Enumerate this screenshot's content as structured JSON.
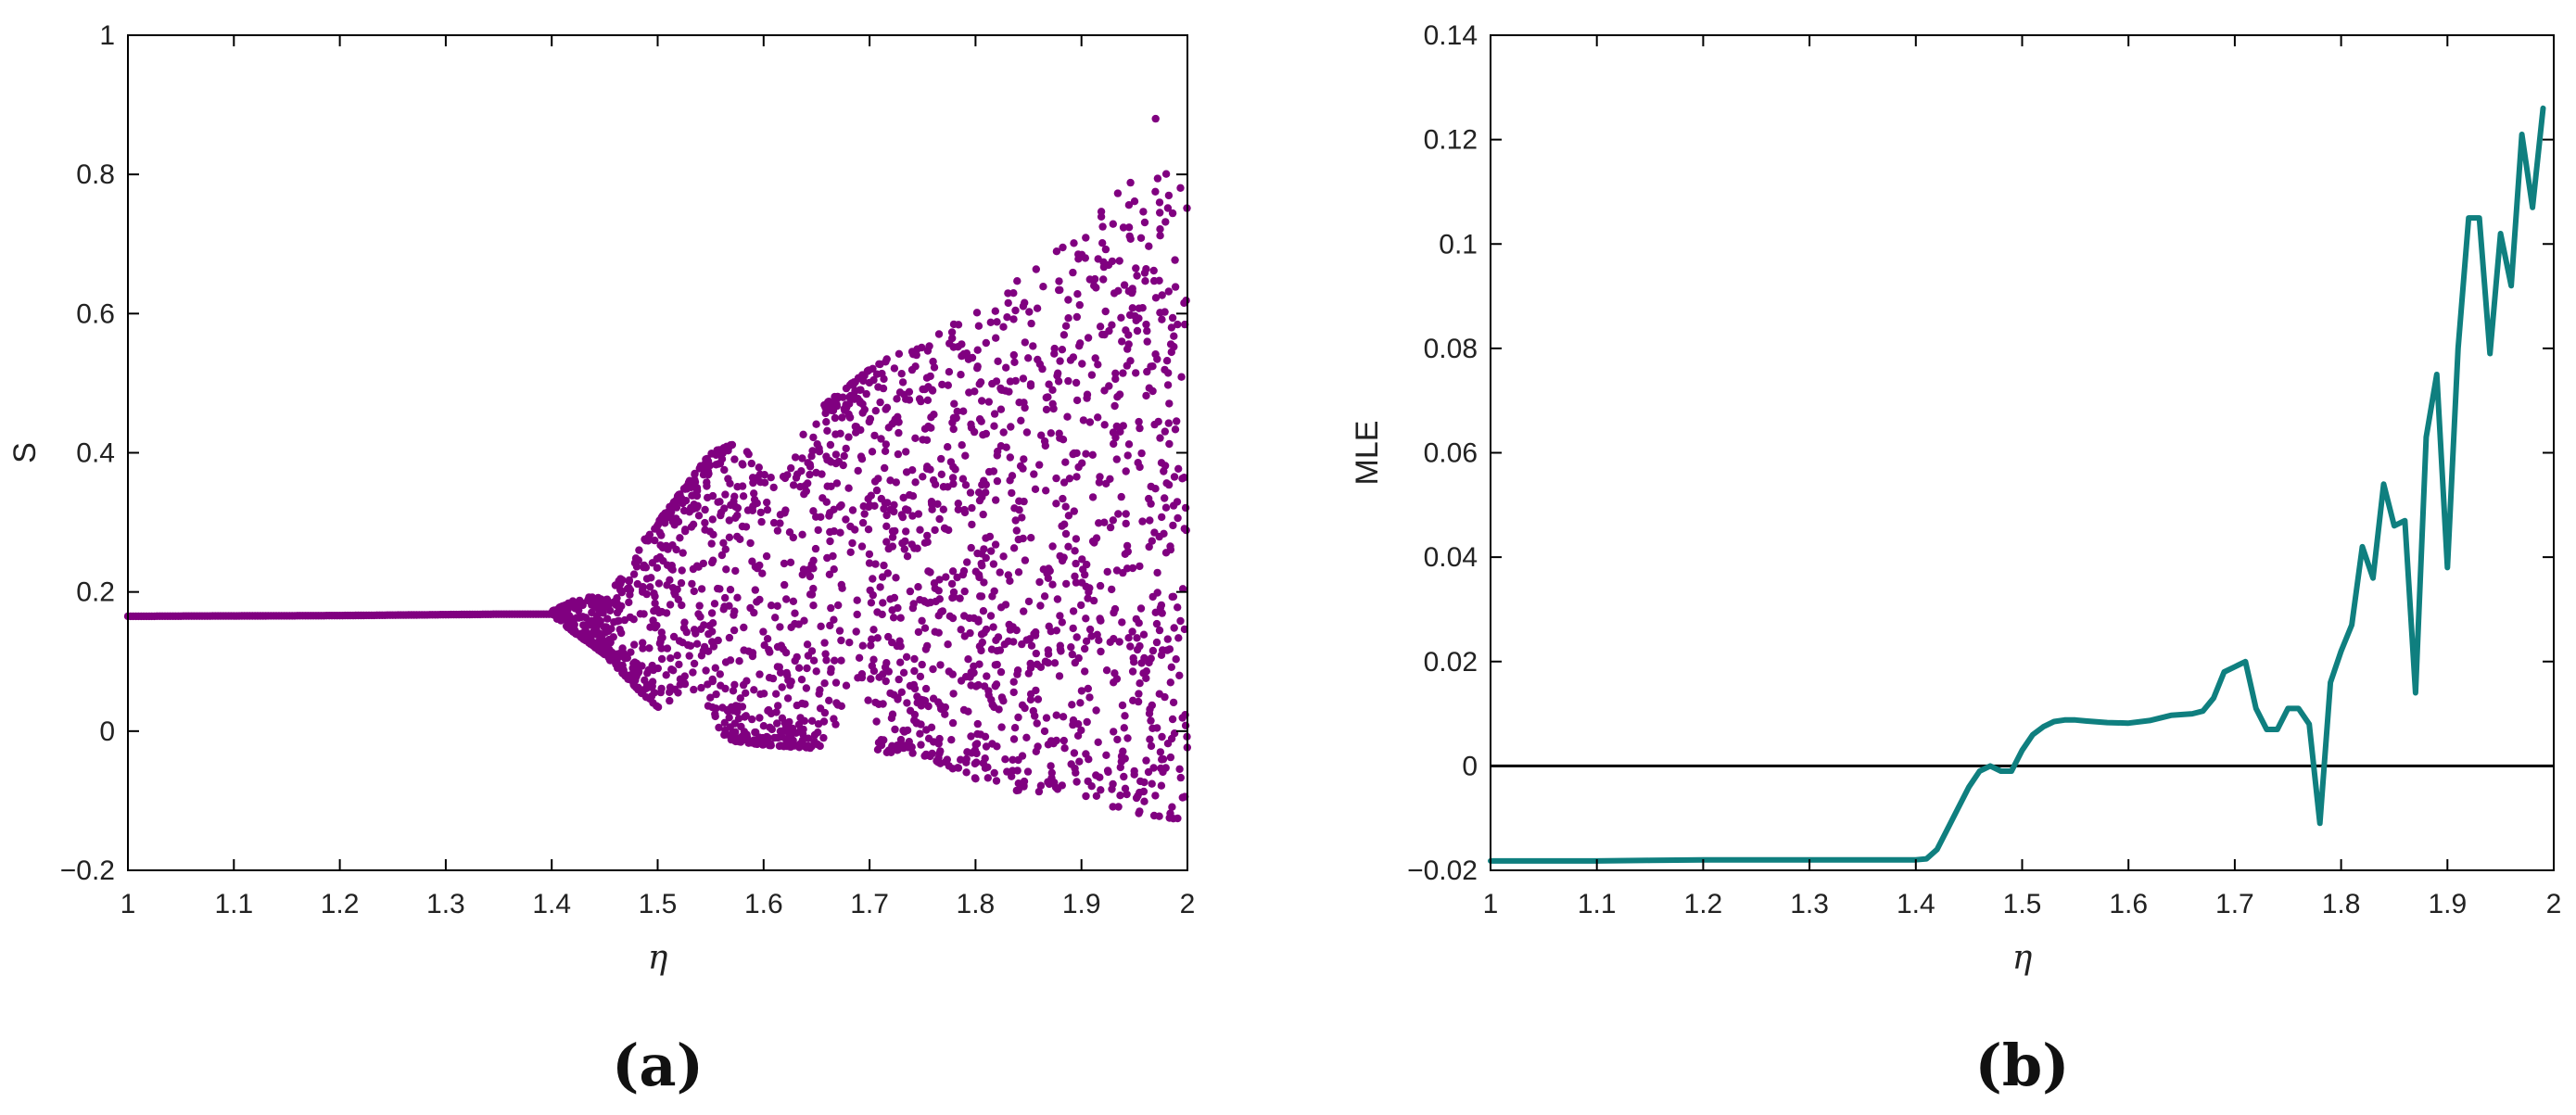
{
  "chart_data": [
    {
      "panel_label": "(a)",
      "type": "scatter",
      "xlabel": "η",
      "ylabel": "S",
      "xlim": [
        1,
        2
      ],
      "ylim": [
        -0.2,
        1
      ],
      "xticks": [
        1,
        1.1,
        1.2,
        1.3,
        1.4,
        1.5,
        1.6,
        1.7,
        1.8,
        1.9,
        2
      ],
      "yticks": [
        -0.2,
        0,
        0.2,
        0.4,
        0.6,
        0.8,
        1
      ],
      "grid": false,
      "color": "#800080",
      "fixed_point": [
        [
          1.0,
          0.165
        ],
        [
          1.2,
          0.166
        ],
        [
          1.35,
          0.168
        ],
        [
          1.4,
          0.168
        ]
      ],
      "envelope_upper": [
        [
          1.4,
          0.172
        ],
        [
          1.45,
          0.21
        ],
        [
          1.5,
          0.3
        ],
        [
          1.55,
          0.4
        ],
        [
          1.6,
          0.43
        ],
        [
          1.65,
          0.46
        ],
        [
          1.7,
          0.52
        ],
        [
          1.75,
          0.57
        ],
        [
          1.8,
          0.6
        ],
        [
          1.85,
          0.66
        ],
        [
          1.9,
          0.72
        ],
        [
          1.95,
          0.8
        ],
        [
          2.0,
          0.82
        ]
      ],
      "envelope_lower": [
        [
          1.4,
          0.165
        ],
        [
          1.45,
          0.11
        ],
        [
          1.5,
          0.03
        ],
        [
          1.55,
          -0.01
        ],
        [
          1.6,
          -0.02
        ],
        [
          1.65,
          -0.025
        ],
        [
          1.7,
          -0.03
        ],
        [
          1.75,
          -0.035
        ],
        [
          1.8,
          -0.07
        ],
        [
          1.85,
          -0.09
        ],
        [
          1.9,
          -0.1
        ],
        [
          1.95,
          -0.12
        ],
        [
          2.0,
          -0.13
        ]
      ],
      "max_point": [
        1.97,
        0.88
      ]
    },
    {
      "panel_label": "(b)",
      "type": "line",
      "xlabel": "η",
      "ylabel": "MLE",
      "xlim": [
        1,
        2
      ],
      "ylim": [
        -0.02,
        0.14
      ],
      "xticks": [
        1,
        1.1,
        1.2,
        1.3,
        1.4,
        1.5,
        1.6,
        1.7,
        1.8,
        1.9,
        2
      ],
      "yticks": [
        -0.02,
        0,
        0.02,
        0.04,
        0.06,
        0.08,
        0.1,
        0.12,
        0.14
      ],
      "grid": false,
      "color": "#0f7f7f",
      "reference_line_y": 0,
      "x": [
        1.0,
        1.05,
        1.1,
        1.15,
        1.2,
        1.25,
        1.3,
        1.35,
        1.4,
        1.41,
        1.42,
        1.43,
        1.44,
        1.45,
        1.46,
        1.47,
        1.48,
        1.49,
        1.5,
        1.51,
        1.52,
        1.53,
        1.54,
        1.55,
        1.56,
        1.58,
        1.6,
        1.62,
        1.64,
        1.66,
        1.67,
        1.68,
        1.69,
        1.7,
        1.71,
        1.72,
        1.73,
        1.74,
        1.75,
        1.76,
        1.77,
        1.78,
        1.79,
        1.8,
        1.81,
        1.82,
        1.83,
        1.84,
        1.85,
        1.86,
        1.87,
        1.88,
        1.89,
        1.9,
        1.91,
        1.92,
        1.93,
        1.94,
        1.95,
        1.96,
        1.97,
        1.98,
        1.99
      ],
      "y": [
        -0.0182,
        -0.0182,
        -0.0182,
        -0.0181,
        -0.018,
        -0.018,
        -0.018,
        -0.018,
        -0.018,
        -0.0178,
        -0.016,
        -0.012,
        -0.008,
        -0.004,
        -0.001,
        0.0,
        -0.001,
        -0.001,
        0.003,
        0.006,
        0.0075,
        0.0085,
        0.0088,
        0.0088,
        0.0086,
        0.0083,
        0.0082,
        0.0087,
        0.0097,
        0.01,
        0.0105,
        0.013,
        0.018,
        0.019,
        0.02,
        0.011,
        0.007,
        0.007,
        0.011,
        0.011,
        0.008,
        -0.011,
        0.016,
        0.022,
        0.027,
        0.042,
        0.036,
        0.054,
        0.046,
        0.047,
        0.014,
        0.063,
        0.075,
        0.038,
        0.08,
        0.105,
        0.105,
        0.079,
        0.102,
        0.092,
        0.121,
        0.107,
        0.126
      ]
    }
  ]
}
